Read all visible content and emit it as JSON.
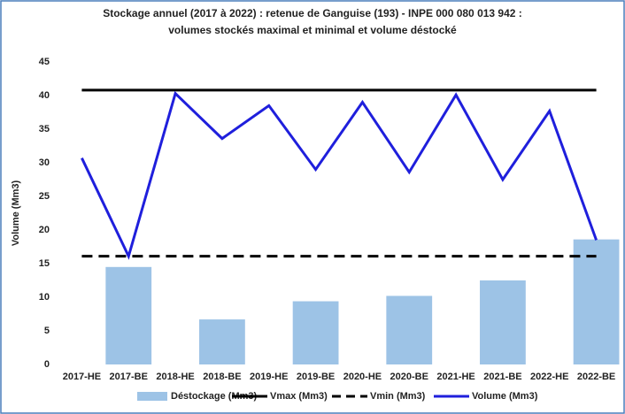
{
  "chart_data": {
    "type": "bar",
    "title": [
      "Stockage annuel (2017 à 2022) : retenue de Ganguise (193) - INPE 000 080 013 942 :",
      "volumes stockés maximal et minimal et volume déstocké"
    ],
    "ylabel": "Volume (Mm3)",
    "categories": [
      "2017-HE",
      "2017-BE",
      "2018-HE",
      "2018-BE",
      "2019-HE",
      "2019-BE",
      "2020-HE",
      "2020-BE",
      "2021-HE",
      "2021-BE",
      "2022-HE",
      "2022-BE"
    ],
    "series": [
      {
        "name": "Déstockage (Mm3)",
        "type": "bar",
        "color": "#9dc3e6",
        "values": [
          null,
          14.5,
          null,
          6.7,
          null,
          9.4,
          null,
          10.2,
          null,
          12.5,
          null,
          18.6
        ]
      },
      {
        "name": "Vmax (Mm3)",
        "type": "line",
        "color": "#000000",
        "dashed": false,
        "values": [
          40.8,
          40.8,
          40.8,
          40.8,
          40.8,
          40.8,
          40.8,
          40.8,
          40.8,
          40.8,
          40.8,
          40.8
        ]
      },
      {
        "name": "Vmin (Mm3)",
        "type": "line",
        "color": "#000000",
        "dashed": true,
        "values": [
          16.1,
          16.1,
          16.1,
          16.1,
          16.1,
          16.1,
          16.1,
          16.1,
          16.1,
          16.1,
          16.1,
          16.1
        ]
      },
      {
        "name": "Volume (Mm3)",
        "type": "line",
        "color": "#1f1fdc",
        "dashed": false,
        "values": [
          30.7,
          16.1,
          40.3,
          33.6,
          38.5,
          29.0,
          39.0,
          28.6,
          40.1,
          27.5,
          37.7,
          18.5
        ]
      }
    ],
    "ylim": [
      0,
      45
    ],
    "yticks": [
      0,
      5,
      10,
      15,
      20,
      25,
      30,
      35,
      40,
      45
    ],
    "grid": false,
    "legend": "bottom"
  }
}
